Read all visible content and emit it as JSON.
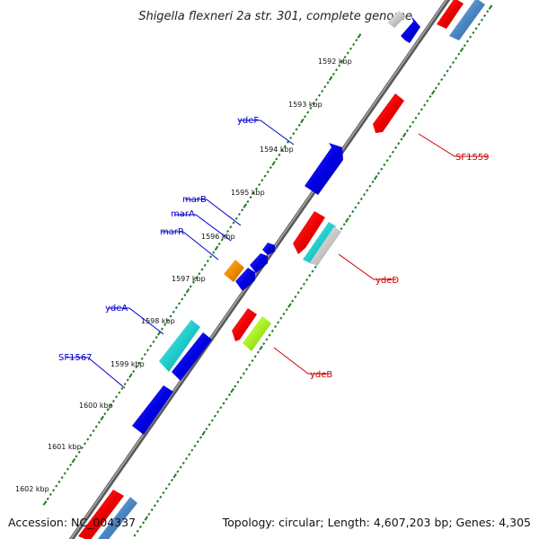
{
  "title": "Shigella flexneri 2a str. 301, complete genome",
  "accession": "Accession: NC_004337",
  "topology": "Topology: circular; Length: 4,607,203 bp; Genes: 4,305",
  "colors": {
    "backbone": "#7a7a7a",
    "tick_major": "#1e7a1e",
    "label_forward": "#0000cc",
    "label_reverse": "#cc0000"
  },
  "scale_labels": [
    "1592 kbp",
    "1593 kbp",
    "1594 kbp",
    "1595 kbp",
    "1596 kbp",
    "1597 kbp",
    "1598 kbp",
    "1599 kbp",
    "1600 kbp",
    "1601 kbp",
    "1602 kbp"
  ],
  "gene_labels": {
    "forward": [
      "ydeF",
      "marB",
      "marA",
      "marR",
      "ydeA",
      "SF1567"
    ],
    "reverse": [
      "SF1559",
      "ydeD",
      "ydeB"
    ]
  }
}
